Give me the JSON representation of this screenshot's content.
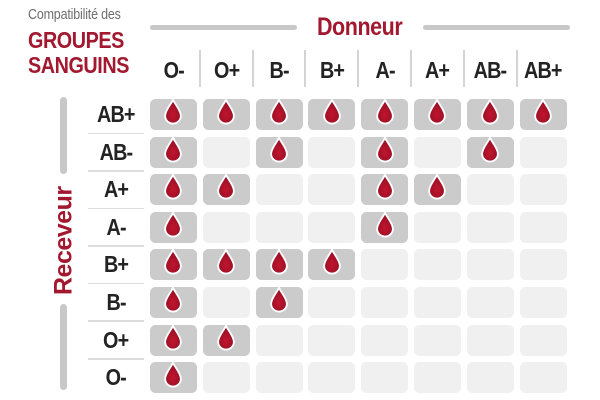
{
  "title": {
    "subtitle": "Compatibilité des",
    "line1": "GROUPES",
    "line2": "SANGUINS"
  },
  "donor_header": "Donneur",
  "receiver_header": "Receveur",
  "chart_data": {
    "type": "heatmap",
    "title": "Compatibilité des GROUPES SANGUINS",
    "x_label": "Donneur",
    "y_label": "Receveur",
    "x_categories": [
      "O-",
      "O+",
      "B-",
      "B+",
      "A-",
      "A+",
      "AB-",
      "AB+"
    ],
    "y_categories": [
      "AB+",
      "AB-",
      "A+",
      "A-",
      "B+",
      "B-",
      "O+",
      "O-"
    ],
    "values": [
      [
        1,
        1,
        1,
        1,
        1,
        1,
        1,
        1
      ],
      [
        1,
        0,
        1,
        0,
        1,
        0,
        1,
        0
      ],
      [
        1,
        1,
        0,
        0,
        1,
        1,
        0,
        0
      ],
      [
        1,
        0,
        0,
        0,
        1,
        0,
        0,
        0
      ],
      [
        1,
        1,
        1,
        1,
        0,
        0,
        0,
        0
      ],
      [
        1,
        0,
        1,
        0,
        0,
        0,
        0,
        0
      ],
      [
        1,
        1,
        0,
        0,
        0,
        0,
        0,
        0
      ],
      [
        1,
        0,
        0,
        0,
        0,
        0,
        0,
        0
      ]
    ],
    "value_meaning": "1 = compatible (blood-drop icon shown in gray cell), 0 = not compatible (empty light cell)",
    "marker_icon": "blood-drop-icon",
    "legend": "none",
    "grid": "rounded cell matrix"
  },
  "colors": {
    "brand_red": "#A2182F",
    "drop_center_red": "#C2142F",
    "drop_edge_red": "#8C0F23",
    "cell_filled": "#CBCBCB",
    "cell_empty": "#F0F0F0",
    "line_gray": "#C8C8C8",
    "separator_gray": "#D4D4D4",
    "divider_gray": "#DDDDDD",
    "text_dark": "#232323",
    "subtitle_gray": "#6E6E6E"
  }
}
